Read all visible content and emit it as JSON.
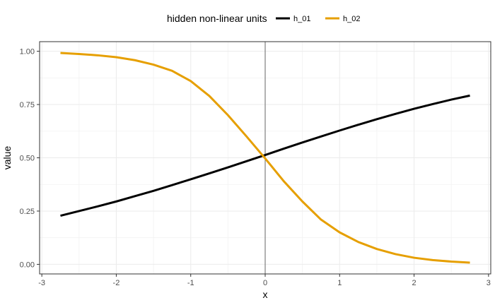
{
  "chart_data": {
    "type": "line",
    "xlabel": "x",
    "ylabel": "value",
    "xlim": [
      -3,
      3
    ],
    "ylim": [
      0,
      1
    ],
    "x_ticks": [
      -3,
      -2,
      -1,
      0,
      1,
      2,
      3
    ],
    "x_tick_labels": [
      "-3",
      "-2",
      "-1",
      "0",
      "1",
      "2",
      "3"
    ],
    "y_ticks": [
      0,
      0.25,
      0.5,
      0.75,
      1
    ],
    "y_tick_labels": [
      "0.00",
      "0.25",
      "0.50",
      "0.75",
      "1.00"
    ],
    "grid": true,
    "vline_x": 0,
    "legend": {
      "title": "hidden non-linear units",
      "position": "top"
    },
    "series": [
      {
        "name": "h_01",
        "color": "#000000",
        "x": [
          -2.75,
          -2.5,
          -2.25,
          -2.0,
          -1.75,
          -1.5,
          -1.25,
          -1.0,
          -0.75,
          -0.5,
          -0.25,
          0.0,
          0.25,
          0.5,
          0.75,
          1.0,
          1.25,
          1.5,
          1.75,
          2.0,
          2.25,
          2.5,
          2.75
        ],
        "y": [
          0.228,
          0.25,
          0.272,
          0.295,
          0.32,
          0.345,
          0.372,
          0.399,
          0.427,
          0.455,
          0.484,
          0.513,
          0.543,
          0.572,
          0.6,
          0.628,
          0.655,
          0.681,
          0.706,
          0.73,
          0.752,
          0.773,
          0.792
        ]
      },
      {
        "name": "h_02",
        "color": "#E69F00",
        "x": [
          -2.75,
          -2.5,
          -2.25,
          -2.0,
          -1.75,
          -1.5,
          -1.25,
          -1.0,
          -0.75,
          -0.5,
          -0.25,
          0.0,
          0.25,
          0.5,
          0.75,
          1.0,
          1.25,
          1.5,
          1.75,
          2.0,
          2.25,
          2.5,
          2.75
        ],
        "y": [
          0.992,
          0.987,
          0.981,
          0.972,
          0.958,
          0.937,
          0.908,
          0.86,
          0.79,
          0.7,
          0.6,
          0.497,
          0.39,
          0.295,
          0.21,
          0.15,
          0.105,
          0.072,
          0.048,
          0.031,
          0.02,
          0.013,
          0.008
        ]
      }
    ]
  }
}
